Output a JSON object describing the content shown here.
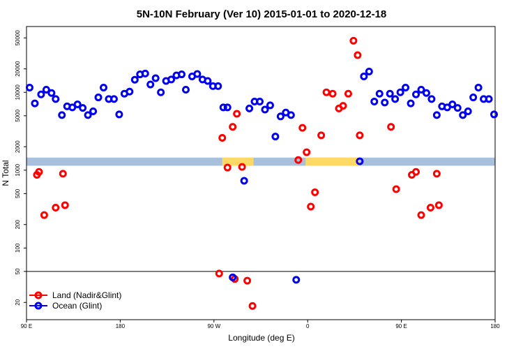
{
  "chart_data": {
    "type": "scatter",
    "title": "5N-10N February (Ver 10)   2015-01-01 to 2020-12-18",
    "xlabel": "Longitude (deg E)",
    "ylabel": "N Total",
    "x_ticks": [
      {
        "value": 0,
        "label": "90 E"
      },
      {
        "value": 90,
        "label": "180"
      },
      {
        "value": 180,
        "label": "90 W"
      },
      {
        "value": 270,
        "label": "0"
      },
      {
        "value": 360,
        "label": "90 E"
      },
      {
        "value": 450,
        "label": "180"
      }
    ],
    "xlim": [
      0,
      450
    ],
    "y_scale": "log",
    "ylim": [
      12,
      70000
    ],
    "y_ticks": [
      20,
      50,
      100,
      200,
      500,
      1000,
      2000,
      5000,
      10000,
      20000,
      50000
    ],
    "separator_y": 50,
    "band": {
      "low": 1140,
      "high": 1450,
      "color": "#a8c0dc",
      "land_color": "#ffd966"
    },
    "land_segments": [
      [
        188,
        218
      ],
      [
        268,
        320
      ]
    ],
    "legend_position": "bottom-left",
    "series": [
      {
        "name": "Land (Nadir&Glint)",
        "color": "#ff0000",
        "points": [
          [
            10,
            870
          ],
          [
            12,
            950
          ],
          [
            17,
            265
          ],
          [
            28,
            330
          ],
          [
            35,
            900
          ],
          [
            37,
            355
          ],
          [
            185,
            47
          ],
          [
            188,
            2600
          ],
          [
            193,
            1080
          ],
          [
            198,
            3600
          ],
          [
            200,
            40
          ],
          [
            202,
            5300
          ],
          [
            207,
            1100
          ],
          [
            212,
            38
          ],
          [
            217,
            18
          ],
          [
            261,
            1350
          ],
          [
            265,
            3500
          ],
          [
            269,
            1700
          ],
          [
            273,
            340
          ],
          [
            277,
            520
          ],
          [
            283,
            2800
          ],
          [
            288,
            10000
          ],
          [
            294,
            9600
          ],
          [
            300,
            6200
          ],
          [
            304,
            6700
          ],
          [
            309,
            9600
          ],
          [
            314,
            46000
          ],
          [
            318,
            30000
          ],
          [
            320,
            2800
          ],
          [
            350,
            3600
          ],
          [
            355,
            570
          ],
          [
            370,
            870
          ],
          [
            374,
            950
          ],
          [
            379,
            265
          ],
          [
            388,
            330
          ],
          [
            394,
            900
          ],
          [
            396,
            355
          ]
        ]
      },
      {
        "name": "Ocean (Glint)",
        "color": "#0000ee",
        "points": [
          [
            3,
            11500
          ],
          [
            8,
            7200
          ],
          [
            14,
            9400
          ],
          [
            19,
            10800
          ],
          [
            24,
            9800
          ],
          [
            28,
            8200
          ],
          [
            34,
            5100
          ],
          [
            39,
            6600
          ],
          [
            44,
            6400
          ],
          [
            49,
            7000
          ],
          [
            54,
            6300
          ],
          [
            59,
            5100
          ],
          [
            64,
            5700
          ],
          [
            69,
            8600
          ],
          [
            74,
            11500
          ],
          [
            79,
            8200
          ],
          [
            84,
            8200
          ],
          [
            89,
            5200
          ],
          [
            94,
            9600
          ],
          [
            99,
            10200
          ],
          [
            104,
            14500
          ],
          [
            109,
            17000
          ],
          [
            114,
            17400
          ],
          [
            119,
            12600
          ],
          [
            124,
            15200
          ],
          [
            129,
            10000
          ],
          [
            134,
            14000
          ],
          [
            139,
            14600
          ],
          [
            144,
            16500
          ],
          [
            149,
            17000
          ],
          [
            153,
            10800
          ],
          [
            159,
            16000
          ],
          [
            164,
            17200
          ],
          [
            169,
            14600
          ],
          [
            174,
            14000
          ],
          [
            179,
            12000
          ],
          [
            184,
            12000
          ],
          [
            189,
            6400
          ],
          [
            193,
            6400
          ],
          [
            198,
            42
          ],
          [
            209,
            730
          ],
          [
            214,
            6200
          ],
          [
            219,
            7600
          ],
          [
            224,
            7600
          ],
          [
            229,
            6000
          ],
          [
            234,
            6800
          ],
          [
            239,
            2700
          ],
          [
            244,
            4900
          ],
          [
            249,
            5500
          ],
          [
            254,
            5100
          ],
          [
            259,
            39
          ],
          [
            320,
            1300
          ],
          [
            324,
            16000
          ],
          [
            329,
            18500
          ],
          [
            334,
            7600
          ],
          [
            339,
            9600
          ],
          [
            344,
            7400
          ],
          [
            349,
            9600
          ],
          [
            354,
            8200
          ],
          [
            359,
            10000
          ],
          [
            364,
            11500
          ],
          [
            369,
            7200
          ],
          [
            374,
            9400
          ],
          [
            379,
            10800
          ],
          [
            384,
            9800
          ],
          [
            389,
            8200
          ],
          [
            394,
            5100
          ],
          [
            399,
            6600
          ],
          [
            404,
            6400
          ],
          [
            409,
            7000
          ],
          [
            414,
            6300
          ],
          [
            419,
            5100
          ],
          [
            424,
            5700
          ],
          [
            429,
            8600
          ],
          [
            434,
            11500
          ],
          [
            439,
            8200
          ],
          [
            444,
            8200
          ],
          [
            449,
            5200
          ]
        ]
      }
    ]
  }
}
